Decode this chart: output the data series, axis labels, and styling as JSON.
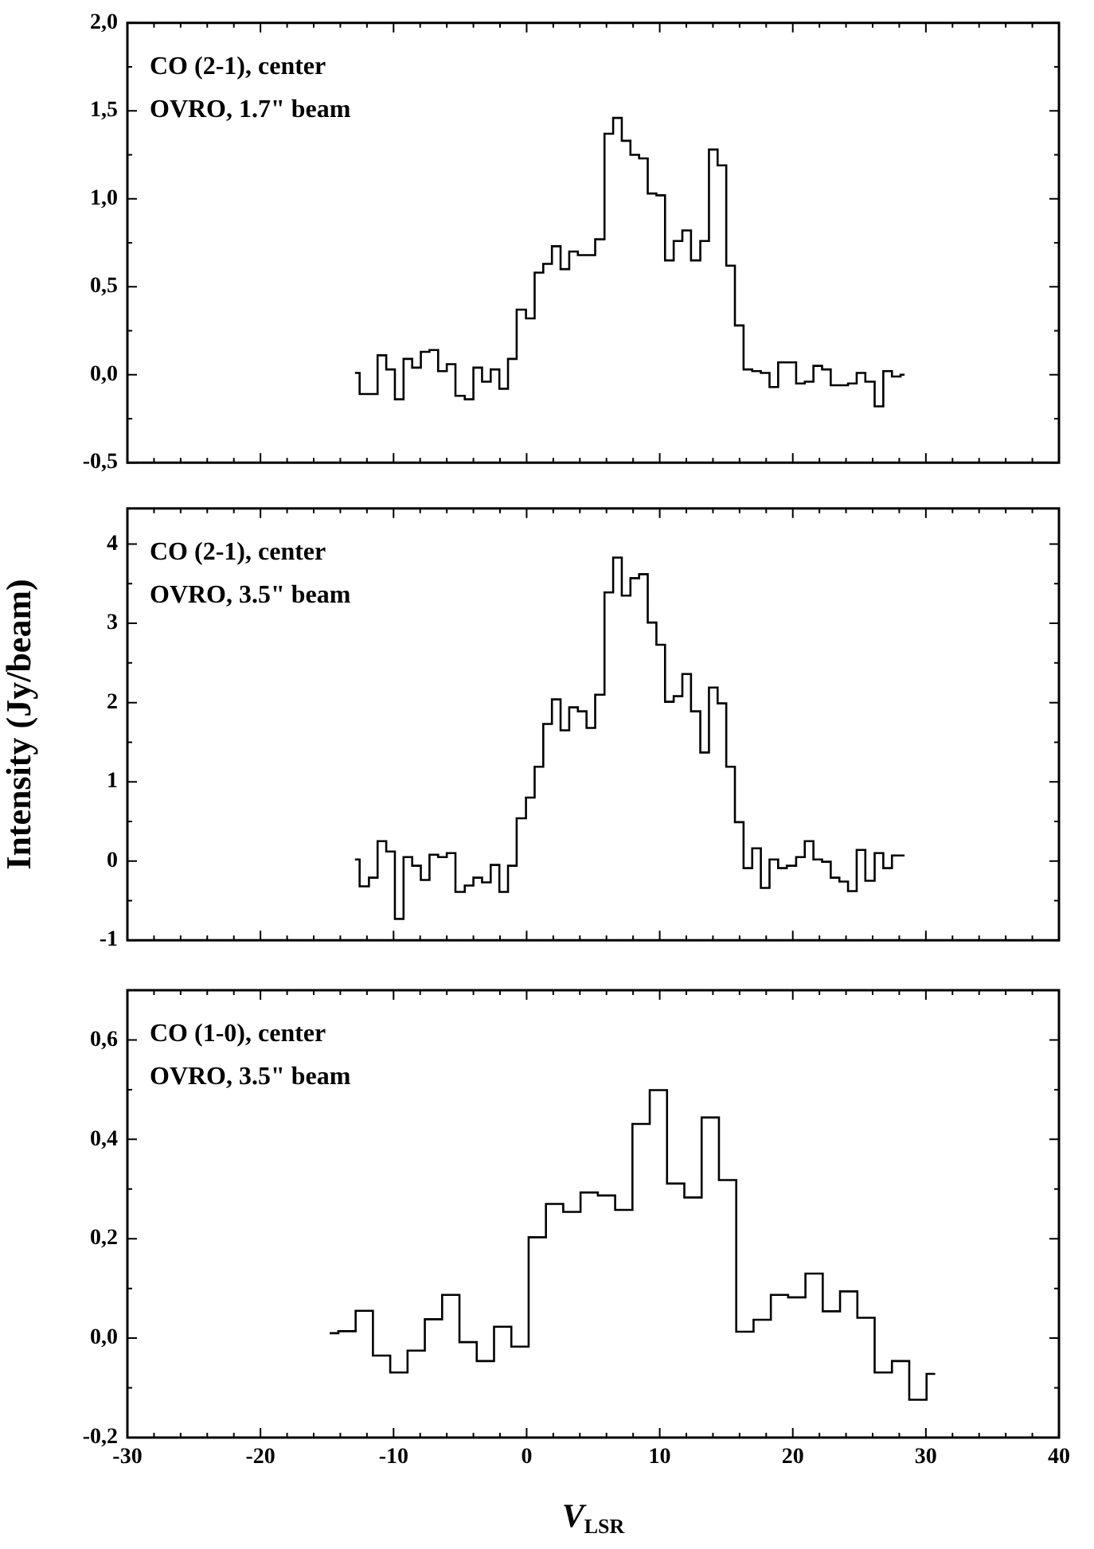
{
  "chart_data": [
    {
      "type": "step",
      "annotations": [
        "CO (2-1), center",
        "OVRO, 1.7\" beam"
      ],
      "tick_labels": "y",
      "x": [
        -12.9,
        -12.2,
        -11.5,
        -10.9,
        -10.2,
        -9.6,
        -8.9,
        -8.3,
        -7.6,
        -7.0,
        -6.3,
        -5.7,
        -5.0,
        -4.3,
        -3.7,
        -3.0,
        -2.4,
        -1.7,
        -1.1,
        -0.4,
        0.3,
        0.9,
        1.6,
        2.2,
        2.9,
        3.5,
        4.2,
        4.8,
        5.5,
        6.2,
        6.8,
        7.5,
        8.1,
        8.8,
        9.4,
        10.1,
        10.7,
        11.4,
        12.0,
        12.7,
        13.4,
        14.0,
        14.7,
        15.3,
        16.0,
        16.6,
        17.3,
        17.9,
        18.6,
        19.2,
        19.9,
        20.6,
        21.2,
        21.9,
        22.5,
        23.2,
        23.8,
        24.5,
        25.1,
        25.8,
        26.5,
        27.1,
        27.8,
        28.4
      ],
      "series": [
        {
          "color": "#000000",
          "values": [
            0.01,
            -0.11,
            -0.11,
            0.11,
            0.03,
            -0.14,
            0.09,
            0.04,
            0.13,
            0.14,
            0.02,
            0.06,
            -0.12,
            -0.14,
            0.04,
            -0.04,
            0.03,
            -0.08,
            0.09,
            0.37,
            0.32,
            0.58,
            0.63,
            0.73,
            0.6,
            0.7,
            0.68,
            0.68,
            0.77,
            1.37,
            1.46,
            1.33,
            1.25,
            1.23,
            1.03,
            1.02,
            0.65,
            0.76,
            0.82,
            0.65,
            0.76,
            1.28,
            1.19,
            0.62,
            0.28,
            0.03,
            0.02,
            0.01,
            -0.07,
            0.07,
            0.07,
            -0.05,
            -0.04,
            0.05,
            0.03,
            -0.06,
            -0.06,
            -0.05,
            0.01,
            -0.04,
            -0.18,
            0.02,
            -0.01,
            0.0
          ]
        }
      ],
      "xlim": [
        -30,
        40
      ],
      "xticks": [
        -30,
        {
          "value": -28,
          "label": null
        },
        {
          "value": -26,
          "label": null
        },
        {
          "value": -24,
          "label": null
        },
        {
          "value": -22,
          "label": null
        },
        -20,
        {
          "value": -18,
          "label": null
        },
        {
          "value": -16,
          "label": null
        },
        {
          "value": -14,
          "label": null
        },
        {
          "value": -12,
          "label": null
        },
        -10,
        {
          "value": -8,
          "label": null
        },
        {
          "value": -6,
          "label": null
        },
        {
          "value": -4,
          "label": null
        },
        {
          "value": -2,
          "label": null
        },
        0,
        {
          "value": 2,
          "label": null
        },
        {
          "value": 4,
          "label": null
        },
        {
          "value": 6,
          "label": null
        },
        {
          "value": 8,
          "label": null
        },
        10,
        {
          "value": 12,
          "label": null
        },
        {
          "value": 14,
          "label": null
        },
        {
          "value": 16,
          "label": null
        },
        {
          "value": 18,
          "label": null
        },
        20,
        {
          "value": 22,
          "label": null
        },
        {
          "value": 24,
          "label": null
        },
        {
          "value": 26,
          "label": null
        },
        {
          "value": 28,
          "label": null
        },
        30,
        {
          "value": 32,
          "label": null
        },
        {
          "value": 34,
          "label": null
        },
        {
          "value": 36,
          "label": null
        },
        {
          "value": 38,
          "label": null
        },
        40
      ],
      "ylim": [
        -0.5,
        2.0
      ],
      "yticks": [
        {
          "value": -0.5,
          "label": "-0,5"
        },
        {
          "value": -0.25,
          "label": null
        },
        {
          "value": 0,
          "label": "0,0"
        },
        {
          "value": 0.25,
          "label": null
        },
        {
          "value": 0.5,
          "label": "0,5"
        },
        {
          "value": 0.75,
          "label": null
        },
        {
          "value": 1.0,
          "label": "1,0"
        },
        {
          "value": 1.25,
          "label": null
        },
        {
          "value": 1.5,
          "label": "1,5"
        },
        {
          "value": 1.75,
          "label": null
        },
        {
          "value": 2.0,
          "label": "2,0"
        }
      ]
    },
    {
      "type": "step",
      "annotations": [
        "CO (2-1), center",
        "OVRO, 3.5\" beam"
      ],
      "tick_labels": "y",
      "ylabel": "Intensity (Jy/beam)",
      "x": [
        -12.9,
        -12.2,
        -11.5,
        -10.9,
        -10.2,
        -9.6,
        -8.9,
        -8.3,
        -7.6,
        -7.0,
        -6.3,
        -5.7,
        -5.0,
        -4.3,
        -3.7,
        -3.0,
        -2.4,
        -1.7,
        -1.1,
        -0.4,
        0.3,
        0.9,
        1.6,
        2.2,
        2.9,
        3.5,
        4.2,
        4.8,
        5.5,
        6.2,
        6.8,
        7.5,
        8.1,
        8.8,
        9.4,
        10.1,
        10.7,
        11.4,
        12.0,
        12.7,
        13.4,
        14.0,
        14.7,
        15.3,
        16.0,
        16.6,
        17.3,
        17.9,
        18.6,
        19.2,
        19.9,
        20.6,
        21.2,
        21.9,
        22.5,
        23.2,
        23.8,
        24.5,
        25.1,
        25.8,
        26.5,
        27.1,
        27.8,
        28.4
      ],
      "series": [
        {
          "color": "#000000",
          "values": [
            0.02,
            -0.32,
            -0.21,
            0.25,
            0.12,
            -0.73,
            0.05,
            -0.06,
            -0.24,
            0.08,
            0.05,
            0.1,
            -0.39,
            -0.31,
            -0.21,
            -0.27,
            -0.05,
            -0.39,
            -0.06,
            0.54,
            0.8,
            1.19,
            1.73,
            2.04,
            1.65,
            1.94,
            1.89,
            1.68,
            2.1,
            3.39,
            3.83,
            3.35,
            3.57,
            3.62,
            3.01,
            2.73,
            2.01,
            2.08,
            2.36,
            1.89,
            1.37,
            2.19,
            1.99,
            1.19,
            0.49,
            -0.09,
            0.16,
            -0.34,
            0.02,
            -0.09,
            -0.06,
            0.05,
            0.25,
            0.02,
            -0.01,
            -0.21,
            -0.26,
            -0.38,
            0.14,
            -0.25,
            0.1,
            -0.09,
            0.07,
            0.07
          ]
        }
      ],
      "xlim": [
        -30,
        40
      ],
      "xticks": [
        -30,
        {
          "value": -28,
          "label": null
        },
        {
          "value": -26,
          "label": null
        },
        {
          "value": -24,
          "label": null
        },
        {
          "value": -22,
          "label": null
        },
        -20,
        {
          "value": -18,
          "label": null
        },
        {
          "value": -16,
          "label": null
        },
        {
          "value": -14,
          "label": null
        },
        {
          "value": -12,
          "label": null
        },
        -10,
        {
          "value": -8,
          "label": null
        },
        {
          "value": -6,
          "label": null
        },
        {
          "value": -4,
          "label": null
        },
        {
          "value": -2,
          "label": null
        },
        0,
        {
          "value": 2,
          "label": null
        },
        {
          "value": 4,
          "label": null
        },
        {
          "value": 6,
          "label": null
        },
        {
          "value": 8,
          "label": null
        },
        10,
        {
          "value": 12,
          "label": null
        },
        {
          "value": 14,
          "label": null
        },
        {
          "value": 16,
          "label": null
        },
        {
          "value": 18,
          "label": null
        },
        20,
        {
          "value": 22,
          "label": null
        },
        {
          "value": 24,
          "label": null
        },
        {
          "value": 26,
          "label": null
        },
        {
          "value": 28,
          "label": null
        },
        30,
        {
          "value": 32,
          "label": null
        },
        {
          "value": 34,
          "label": null
        },
        {
          "value": 36,
          "label": null
        },
        {
          "value": 38,
          "label": null
        },
        40
      ],
      "ylim": [
        -1,
        4.45
      ],
      "yticks": [
        -1,
        {
          "value": -0.5,
          "label": null
        },
        0,
        {
          "value": 0.5,
          "label": null
        },
        1,
        {
          "value": 1.5,
          "label": null
        },
        2,
        {
          "value": 2.5,
          "label": null
        },
        3,
        {
          "value": 3.5,
          "label": null
        },
        4
      ]
    },
    {
      "type": "step",
      "annotations": [
        "CO (1-0), center",
        "OVRO, 3.5\" beam"
      ],
      "xlabel": "V$_{LSR}$",
      "x": [
        -14.8,
        -13.5,
        -12.2,
        -10.9,
        -9.6,
        -8.3,
        -7.0,
        -5.7,
        -4.4,
        -3.1,
        -1.8,
        -0.5,
        0.8,
        2.1,
        3.4,
        4.7,
        6.0,
        7.3,
        8.6,
        9.9,
        11.2,
        12.5,
        13.8,
        15.1,
        16.4,
        17.7,
        19.0,
        20.3,
        21.6,
        22.9,
        24.2,
        25.5,
        26.8,
        28.1,
        29.4,
        30.7
      ],
      "series": [
        {
          "color": "#000000",
          "values": [
            0.01,
            0.014,
            0.055,
            -0.035,
            -0.069,
            -0.025,
            0.038,
            0.087,
            -0.008,
            -0.046,
            0.023,
            -0.017,
            0.203,
            0.27,
            0.254,
            0.293,
            0.287,
            0.258,
            0.431,
            0.499,
            0.311,
            0.283,
            0.444,
            0.318,
            0.013,
            0.037,
            0.087,
            0.082,
            0.13,
            0.054,
            0.094,
            0.041,
            -0.069,
            -0.046,
            -0.124,
            -0.072
          ]
        }
      ],
      "xlim": [
        -30,
        40
      ],
      "xticks": [
        -30,
        {
          "value": -28,
          "label": null
        },
        {
          "value": -26,
          "label": null
        },
        {
          "value": -24,
          "label": null
        },
        {
          "value": -22,
          "label": null
        },
        -20,
        {
          "value": -18,
          "label": null
        },
        {
          "value": -16,
          "label": null
        },
        {
          "value": -14,
          "label": null
        },
        {
          "value": -12,
          "label": null
        },
        -10,
        {
          "value": -8,
          "label": null
        },
        {
          "value": -6,
          "label": null
        },
        {
          "value": -4,
          "label": null
        },
        {
          "value": -2,
          "label": null
        },
        0,
        {
          "value": 2,
          "label": null
        },
        {
          "value": 4,
          "label": null
        },
        {
          "value": 6,
          "label": null
        },
        {
          "value": 8,
          "label": null
        },
        10,
        {
          "value": 12,
          "label": null
        },
        {
          "value": 14,
          "label": null
        },
        {
          "value": 16,
          "label": null
        },
        {
          "value": 18,
          "label": null
        },
        20,
        {
          "value": 22,
          "label": null
        },
        {
          "value": 24,
          "label": null
        },
        {
          "value": 26,
          "label": null
        },
        {
          "value": 28,
          "label": null
        },
        30,
        {
          "value": 32,
          "label": null
        },
        {
          "value": 34,
          "label": null
        },
        {
          "value": 36,
          "label": null
        },
        {
          "value": 38,
          "label": null
        },
        40
      ],
      "ylim": [
        -0.2,
        0.7
      ],
      "yticks": [
        {
          "value": -0.2,
          "label": "-0,2"
        },
        {
          "value": -0.1,
          "label": null
        },
        {
          "value": 0,
          "label": "0,0"
        },
        {
          "value": 0.1,
          "label": null
        },
        {
          "value": 0.2,
          "label": "0,2"
        },
        {
          "value": 0.3,
          "label": null
        },
        {
          "value": 0.4,
          "label": "0,4"
        },
        {
          "value": 0.5,
          "label": null
        },
        {
          "value": 0.6,
          "label": "0,6"
        }
      ]
    }
  ]
}
